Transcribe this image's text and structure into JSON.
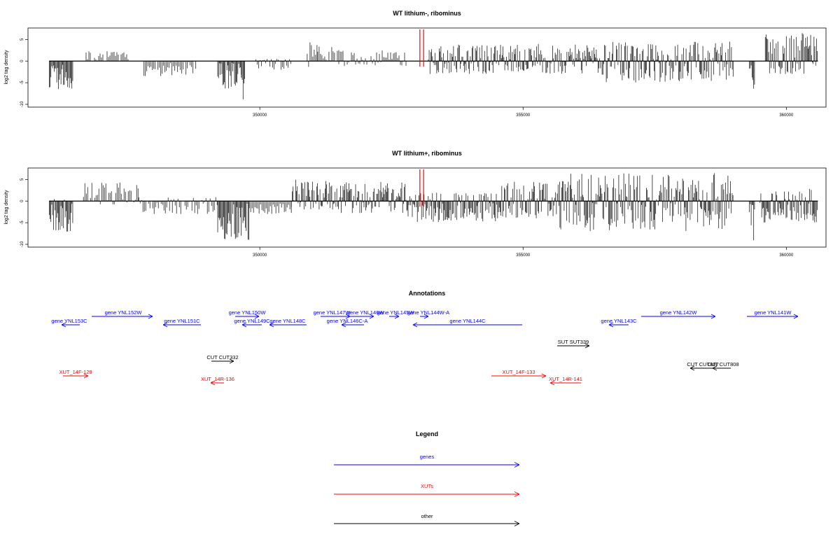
{
  "chart_data": [
    {
      "type": "bar",
      "title": "WT lithium-, ribominus",
      "ylabel": "log2 tag density",
      "xlim": [
        345650,
        360700
      ],
      "ylim": [
        -10,
        7
      ],
      "yticks": [
        -10,
        -5,
        0,
        5
      ],
      "xticks": [
        350000,
        355000,
        360000
      ],
      "grid": false,
      "markers": [
        {
          "x": 353040,
          "color": "#ff0000"
        },
        {
          "x": 353110,
          "color": "#ff0000"
        }
      ],
      "regions": [
        {
          "from": 346000,
          "to": 346450,
          "min": -6.5,
          "max": 0
        },
        {
          "from": 346700,
          "to": 347500,
          "min": 0,
          "max": 2.3
        },
        {
          "from": 347800,
          "to": 348800,
          "min": -3.5,
          "max": 0
        },
        {
          "from": 349200,
          "to": 349650,
          "min": -6.5,
          "max": 0
        },
        {
          "from": 349650,
          "to": 349720,
          "min": -9,
          "max": 0
        },
        {
          "from": 349900,
          "to": 350600,
          "min": -2,
          "max": 0.5
        },
        {
          "from": 350900,
          "to": 351100,
          "min": -1.5,
          "max": 4.5
        },
        {
          "from": 351100,
          "to": 351500,
          "min": 0,
          "max": 3.5
        },
        {
          "from": 351500,
          "to": 352800,
          "min": -1.2,
          "max": 2.5
        },
        {
          "from": 353200,
          "to": 356500,
          "min": -3,
          "max": 4
        },
        {
          "from": 356500,
          "to": 359000,
          "min": -5,
          "max": 4.5
        },
        {
          "from": 359300,
          "to": 359400,
          "min": -8.5,
          "max": 0
        },
        {
          "from": 359600,
          "to": 360600,
          "min": -3,
          "max": 6.5
        }
      ]
    },
    {
      "type": "bar",
      "title": "WT lithium+, ribominus",
      "ylabel": "log2 tag density",
      "xlim": [
        345650,
        360700
      ],
      "ylim": [
        -10,
        7
      ],
      "yticks": [
        -10,
        -5,
        0,
        5
      ],
      "xticks": [
        350000,
        355000,
        360000
      ],
      "grid": false,
      "markers": [
        {
          "x": 353040,
          "color": "#ff0000"
        },
        {
          "x": 353110,
          "color": "#ff0000"
        }
      ],
      "regions": [
        {
          "from": 346000,
          "to": 346450,
          "min": -7.5,
          "max": 0.5
        },
        {
          "from": 346650,
          "to": 347700,
          "min": -1,
          "max": 4.3
        },
        {
          "from": 347700,
          "to": 349200,
          "min": -3,
          "max": 1
        },
        {
          "from": 349200,
          "to": 349800,
          "min": -9,
          "max": 0
        },
        {
          "from": 349800,
          "to": 350600,
          "min": -3,
          "max": 0
        },
        {
          "from": 350600,
          "to": 351500,
          "min": -2,
          "max": 5
        },
        {
          "from": 351500,
          "to": 352800,
          "min": -3,
          "max": 4.5
        },
        {
          "from": 352800,
          "to": 354500,
          "min": -5,
          "max": 2
        },
        {
          "from": 354500,
          "to": 355700,
          "min": -4,
          "max": 4.5
        },
        {
          "from": 355700,
          "to": 359000,
          "min": -7,
          "max": 6.5
        },
        {
          "from": 359300,
          "to": 359400,
          "min": -9.5,
          "max": 0
        },
        {
          "from": 359500,
          "to": 360600,
          "min": -5,
          "max": 3
        }
      ]
    }
  ],
  "annotations": {
    "title": "Annotations",
    "items": [
      {
        "label": "gene YNL153C",
        "color": "#0000ff",
        "strand": "-"
      },
      {
        "label": "gene YNL152W",
        "color": "#0000ff",
        "strand": "+"
      },
      {
        "label": "gene YNL151C",
        "color": "#0000ff",
        "strand": "-"
      },
      {
        "label": "gene YNL150W",
        "color": "#0000ff",
        "strand": "+"
      },
      {
        "label": "gene YNL149C",
        "color": "#0000ff",
        "strand": "-"
      },
      {
        "label": "gene YNL148C",
        "color": "#0000ff",
        "strand": "-"
      },
      {
        "label": "gene YNL147W",
        "color": "#0000ff",
        "strand": "+"
      },
      {
        "label": "gene YNL146C-A",
        "color": "#0000ff",
        "strand": "-"
      },
      {
        "label": "gene YNL146W",
        "color": "#0000ff",
        "strand": "+"
      },
      {
        "label": "gene YNL145W",
        "color": "#0000ff",
        "strand": "+"
      },
      {
        "label": "gene YNL144W-A",
        "color": "#0000ff",
        "strand": "+"
      },
      {
        "label": "gene YNL144C",
        "color": "#0000ff",
        "strand": "-"
      },
      {
        "label": "gene YNL143C",
        "color": "#0000ff",
        "strand": "-"
      },
      {
        "label": "gene YNL142W",
        "color": "#0000ff",
        "strand": "+"
      },
      {
        "label": "gene YNL141W",
        "color": "#0000ff",
        "strand": "+"
      },
      {
        "label": "SUT SUT339",
        "color": "#000000",
        "strand": "+"
      },
      {
        "label": "CUT CUT332",
        "color": "#000000",
        "strand": "+"
      },
      {
        "label": "CUT CUT807",
        "color": "#000000",
        "strand": "-"
      },
      {
        "label": "CUT CUT808",
        "color": "#000000",
        "strand": "-"
      },
      {
        "label": "XUT_14F-128",
        "color": "#ff0000",
        "strand": "+"
      },
      {
        "label": "XUT_14R-136",
        "color": "#ff0000",
        "strand": "-"
      },
      {
        "label": "XUT_14F-133",
        "color": "#ff0000",
        "strand": "+"
      },
      {
        "label": "XUT_14R-141",
        "color": "#ff0000",
        "strand": "-"
      }
    ]
  },
  "legend": {
    "title": "Legend",
    "entries": [
      {
        "label": "genes",
        "color": "#0000ff"
      },
      {
        "label": "XUTs",
        "color": "#ff0000"
      },
      {
        "label": "other",
        "color": "#000000"
      }
    ]
  }
}
